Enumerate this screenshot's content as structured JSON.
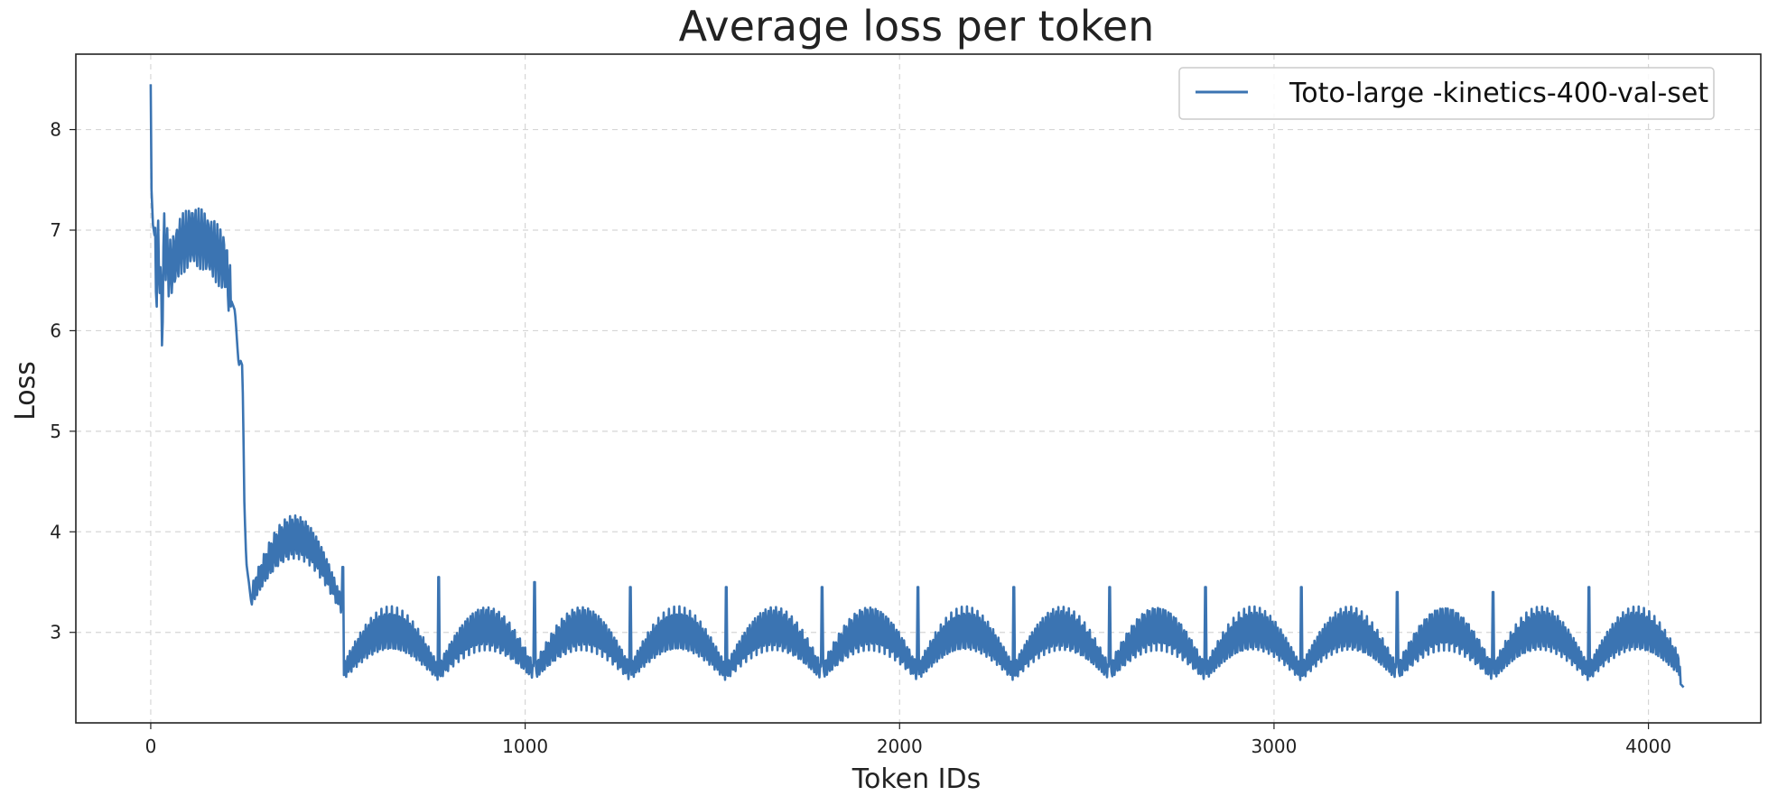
{
  "chart_data": {
    "type": "line",
    "title": "Average loss per token",
    "xlabel": "Token IDs",
    "ylabel": "Loss",
    "xlim": [
      -200,
      4300
    ],
    "ylim": [
      2.1,
      8.75
    ],
    "x_ticks": [
      0,
      1000,
      2000,
      3000,
      4000
    ],
    "y_ticks": [
      3,
      4,
      5,
      6,
      7,
      8
    ],
    "grid": true,
    "legend_position": "top-right",
    "colors": {
      "series": "#3b74b2",
      "grid": "#d6d6d6",
      "axis": "#222222"
    },
    "series": [
      {
        "name": "Toto-large -kinetics-400-val-set",
        "note": "Periodic loss curve: sharp initial drop from ~8.45, oscillating plateau ~6.4-7.0 until ~240, drop to ~3.3 near 260, then 16 repeating ~256-token blocks each starting with a spike (~3.4-3.6) and an arc of fine oscillations between ~2.6 and ~3.3.",
        "values": [
          [
            0,
            8.45
          ],
          [
            2,
            7.4
          ],
          [
            6,
            7.05
          ],
          [
            12,
            6.9
          ],
          [
            16,
            6.4
          ],
          [
            20,
            6.9
          ],
          [
            26,
            6.45
          ],
          [
            30,
            6.0
          ],
          [
            35,
            6.9
          ],
          [
            50,
            6.6
          ],
          [
            80,
            6.85
          ],
          [
            110,
            6.95
          ],
          [
            140,
            6.9
          ],
          [
            170,
            6.8
          ],
          [
            200,
            6.65
          ],
          [
            215,
            6.3
          ],
          [
            225,
            6.2
          ],
          [
            235,
            5.65
          ],
          [
            240,
            5.7
          ],
          [
            245,
            5.65
          ],
          [
            250,
            4.3
          ],
          [
            255,
            3.7
          ],
          [
            262,
            3.5
          ],
          [
            270,
            3.25
          ],
          [
            300,
            3.45
          ],
          [
            340,
            3.65
          ],
          [
            380,
            3.7
          ],
          [
            420,
            3.6
          ],
          [
            460,
            3.35
          ],
          [
            500,
            3.05
          ],
          [
            512,
            3.65
          ],
          [
            520,
            2.85
          ],
          [
            560,
            3.05
          ],
          [
            620,
            3.3
          ],
          [
            660,
            3.3
          ],
          [
            720,
            3.05
          ],
          [
            760,
            2.85
          ],
          [
            768,
            3.55
          ],
          [
            780,
            2.8
          ],
          [
            900,
            3.2
          ],
          [
            1020,
            2.75
          ],
          [
            1024,
            3.5
          ],
          [
            1280,
            3.45
          ],
          [
            1536,
            3.45
          ],
          [
            1792,
            3.45
          ],
          [
            2048,
            3.45
          ],
          [
            2304,
            3.45
          ],
          [
            2560,
            3.45
          ],
          [
            2816,
            3.45
          ],
          [
            3072,
            3.45
          ],
          [
            3328,
            3.4
          ],
          [
            3584,
            3.4
          ],
          [
            3840,
            3.45
          ],
          [
            4095,
            2.45
          ]
        ]
      }
    ]
  }
}
